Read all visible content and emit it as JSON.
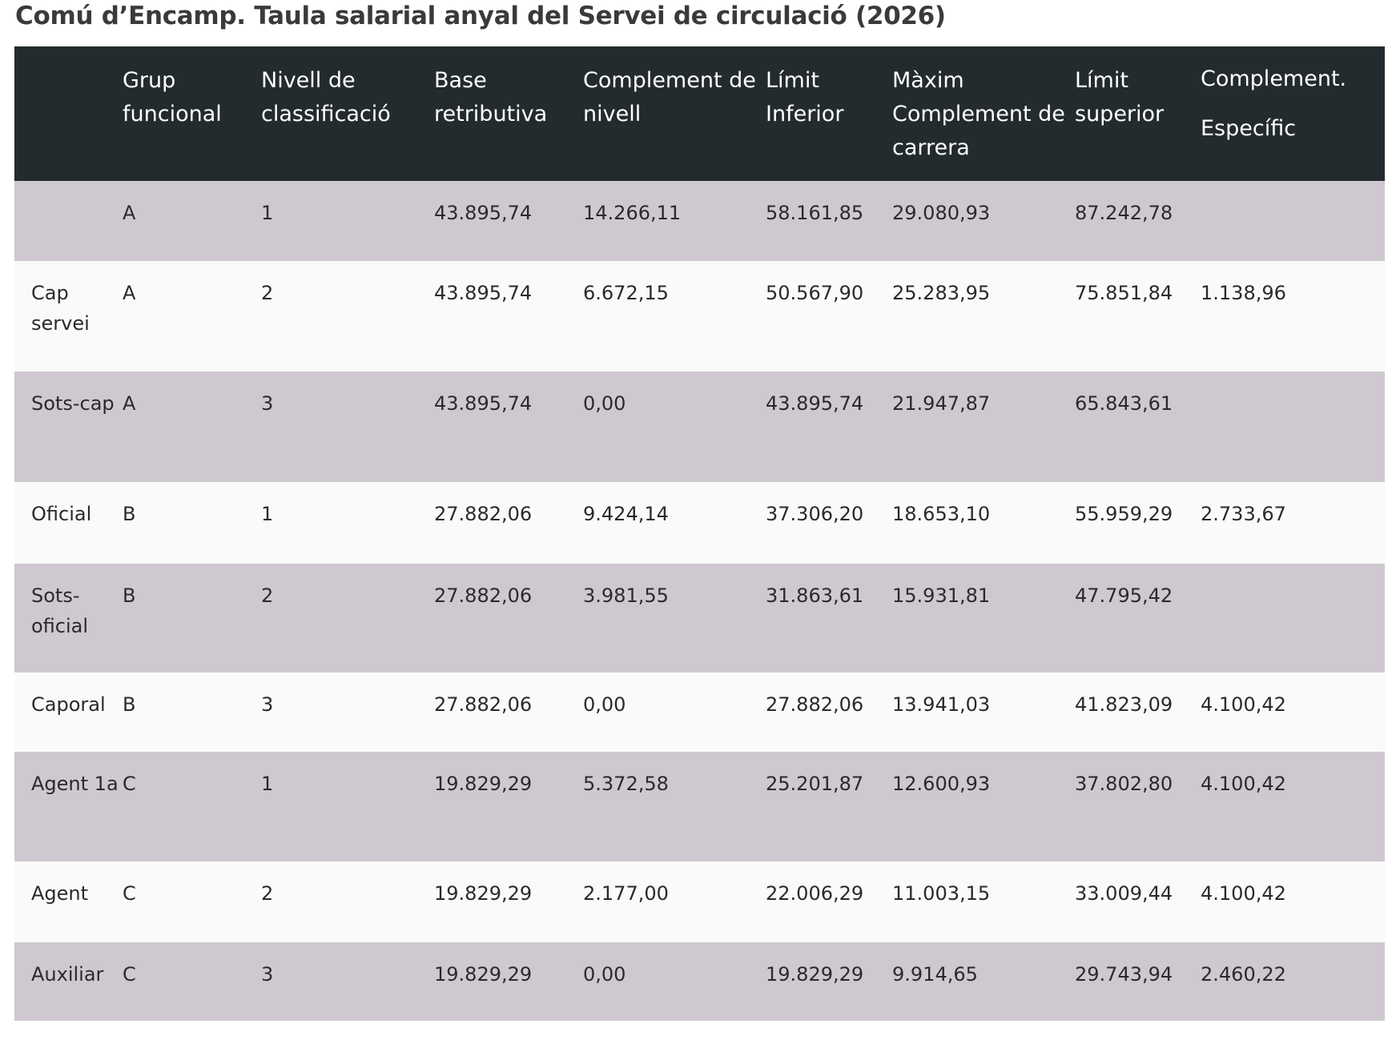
{
  "page_title": "Comú d’Encamp. Taula salarial anyal del Servei de circulació (2026)",
  "table": {
    "headers": [
      "",
      "Grup funcional",
      "Nivell de classificació",
      "Base retributiva",
      "Complement de nivell",
      "Límit Inferior",
      "Màxim Complement de carrera",
      "Límit superior",
      "Complement. Específic"
    ],
    "rows": [
      [
        "",
        "A",
        "1",
        "43.895,74",
        "14.266,11",
        "58.161,85",
        "29.080,93",
        "87.242,78",
        ""
      ],
      [
        "Cap servei",
        "A",
        "2",
        "43.895,74",
        "6.672,15",
        "50.567,90",
        "25.283,95",
        "75.851,84",
        "1.138,96"
      ],
      [
        "Sots-cap",
        "A",
        "3",
        "43.895,74",
        "0,00",
        "43.895,74",
        "21.947,87",
        "65.843,61",
        ""
      ],
      [
        "Oficial",
        "B",
        "1",
        "27.882,06",
        "9.424,14",
        "37.306,20",
        "18.653,10",
        "55.959,29",
        "2.733,67"
      ],
      [
        "Sots-oficial",
        "B",
        "2",
        "27.882,06",
        "3.981,55",
        "31.863,61",
        "15.931,81",
        "47.795,42",
        ""
      ],
      [
        "Caporal",
        "B",
        "3",
        "27.882,06",
        "0,00",
        "27.882,06",
        "13.941,03",
        "41.823,09",
        "4.100,42"
      ],
      [
        "Agent 1a",
        "C",
        "1",
        "19.829,29",
        "5.372,58",
        "25.201,87",
        "12.600,93",
        "37.802,80",
        "4.100,42"
      ],
      [
        "Agent",
        "C",
        "2",
        "19.829,29",
        "2.177,00",
        "22.006,29",
        "11.003,15",
        "33.009,44",
        "4.100,42"
      ],
      [
        "Auxiliar",
        "C",
        "3",
        "19.829,29",
        "0,00",
        "19.829,29",
        "9.914,65",
        "29.743,94",
        "2.460,22"
      ]
    ]
  },
  "colors": {
    "header_background": "#232b2e",
    "header_text": "#ffffff",
    "row_shaded": "#cfc8d0",
    "row_plain": "#fafafa",
    "title_text": "#3a3a3a"
  }
}
